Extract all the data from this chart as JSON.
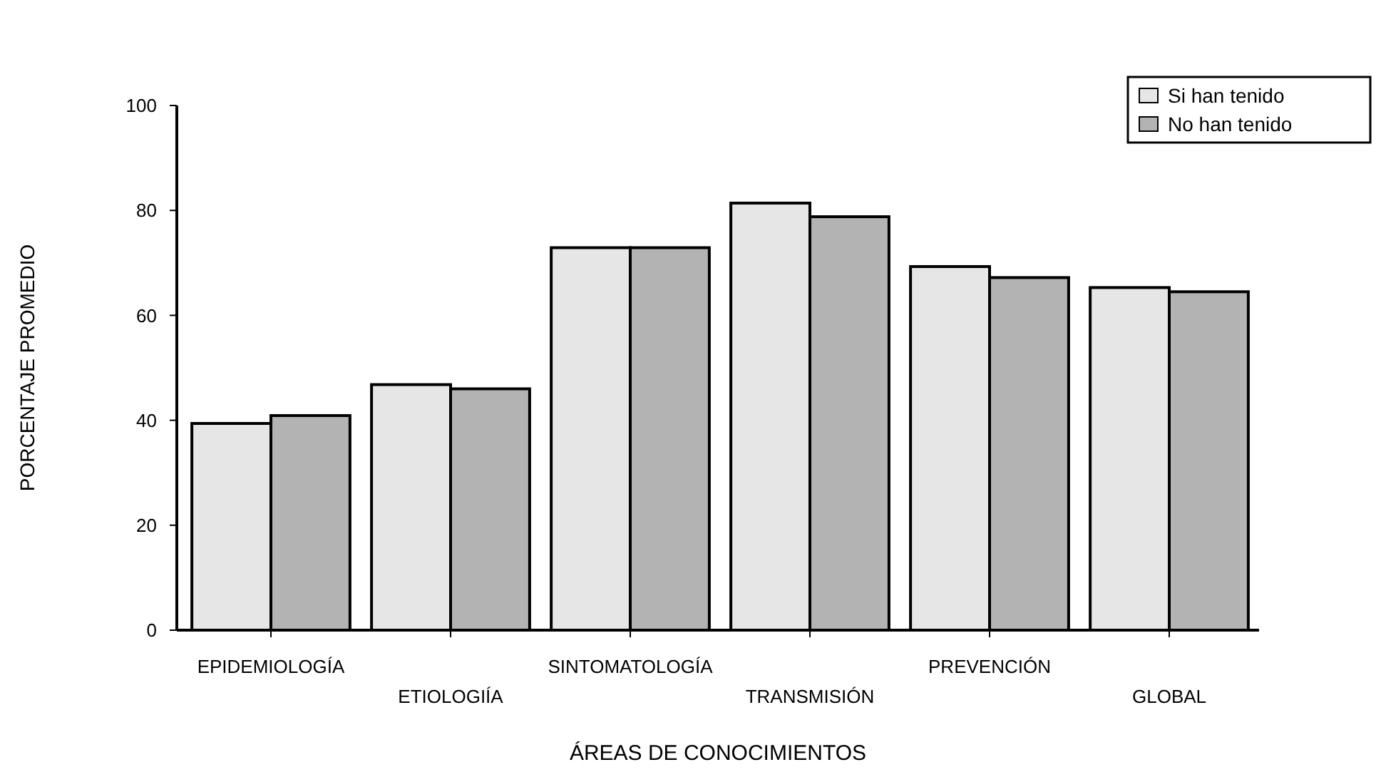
{
  "chart_data": {
    "type": "bar",
    "xlabel": "ÁREAS DE CONOCIMIENTOS",
    "ylabel": "PORCENTAJE PROMEDIO",
    "categories": [
      "EPIDEMIOLOGÍA",
      "ETIOLOGIÍA",
      "SINTOMATOLOGÍA",
      "TRANSMISIÓN",
      "PREVENCIÓN",
      "GLOBAL"
    ],
    "series": [
      {
        "name": "Si han tenido",
        "color": "#e6e6e6",
        "values": [
          39.4,
          46.8,
          72.9,
          81.4,
          69.3,
          65.3
        ]
      },
      {
        "name": "No han tenido",
        "color": "#b3b3b3",
        "values": [
          40.9,
          46.0,
          72.9,
          78.8,
          67.2,
          64.5
        ]
      }
    ],
    "ylim": [
      0,
      100
    ],
    "yticks": [
      0,
      20,
      40,
      60,
      80,
      100
    ],
    "legend": "top right",
    "grid": false
  }
}
